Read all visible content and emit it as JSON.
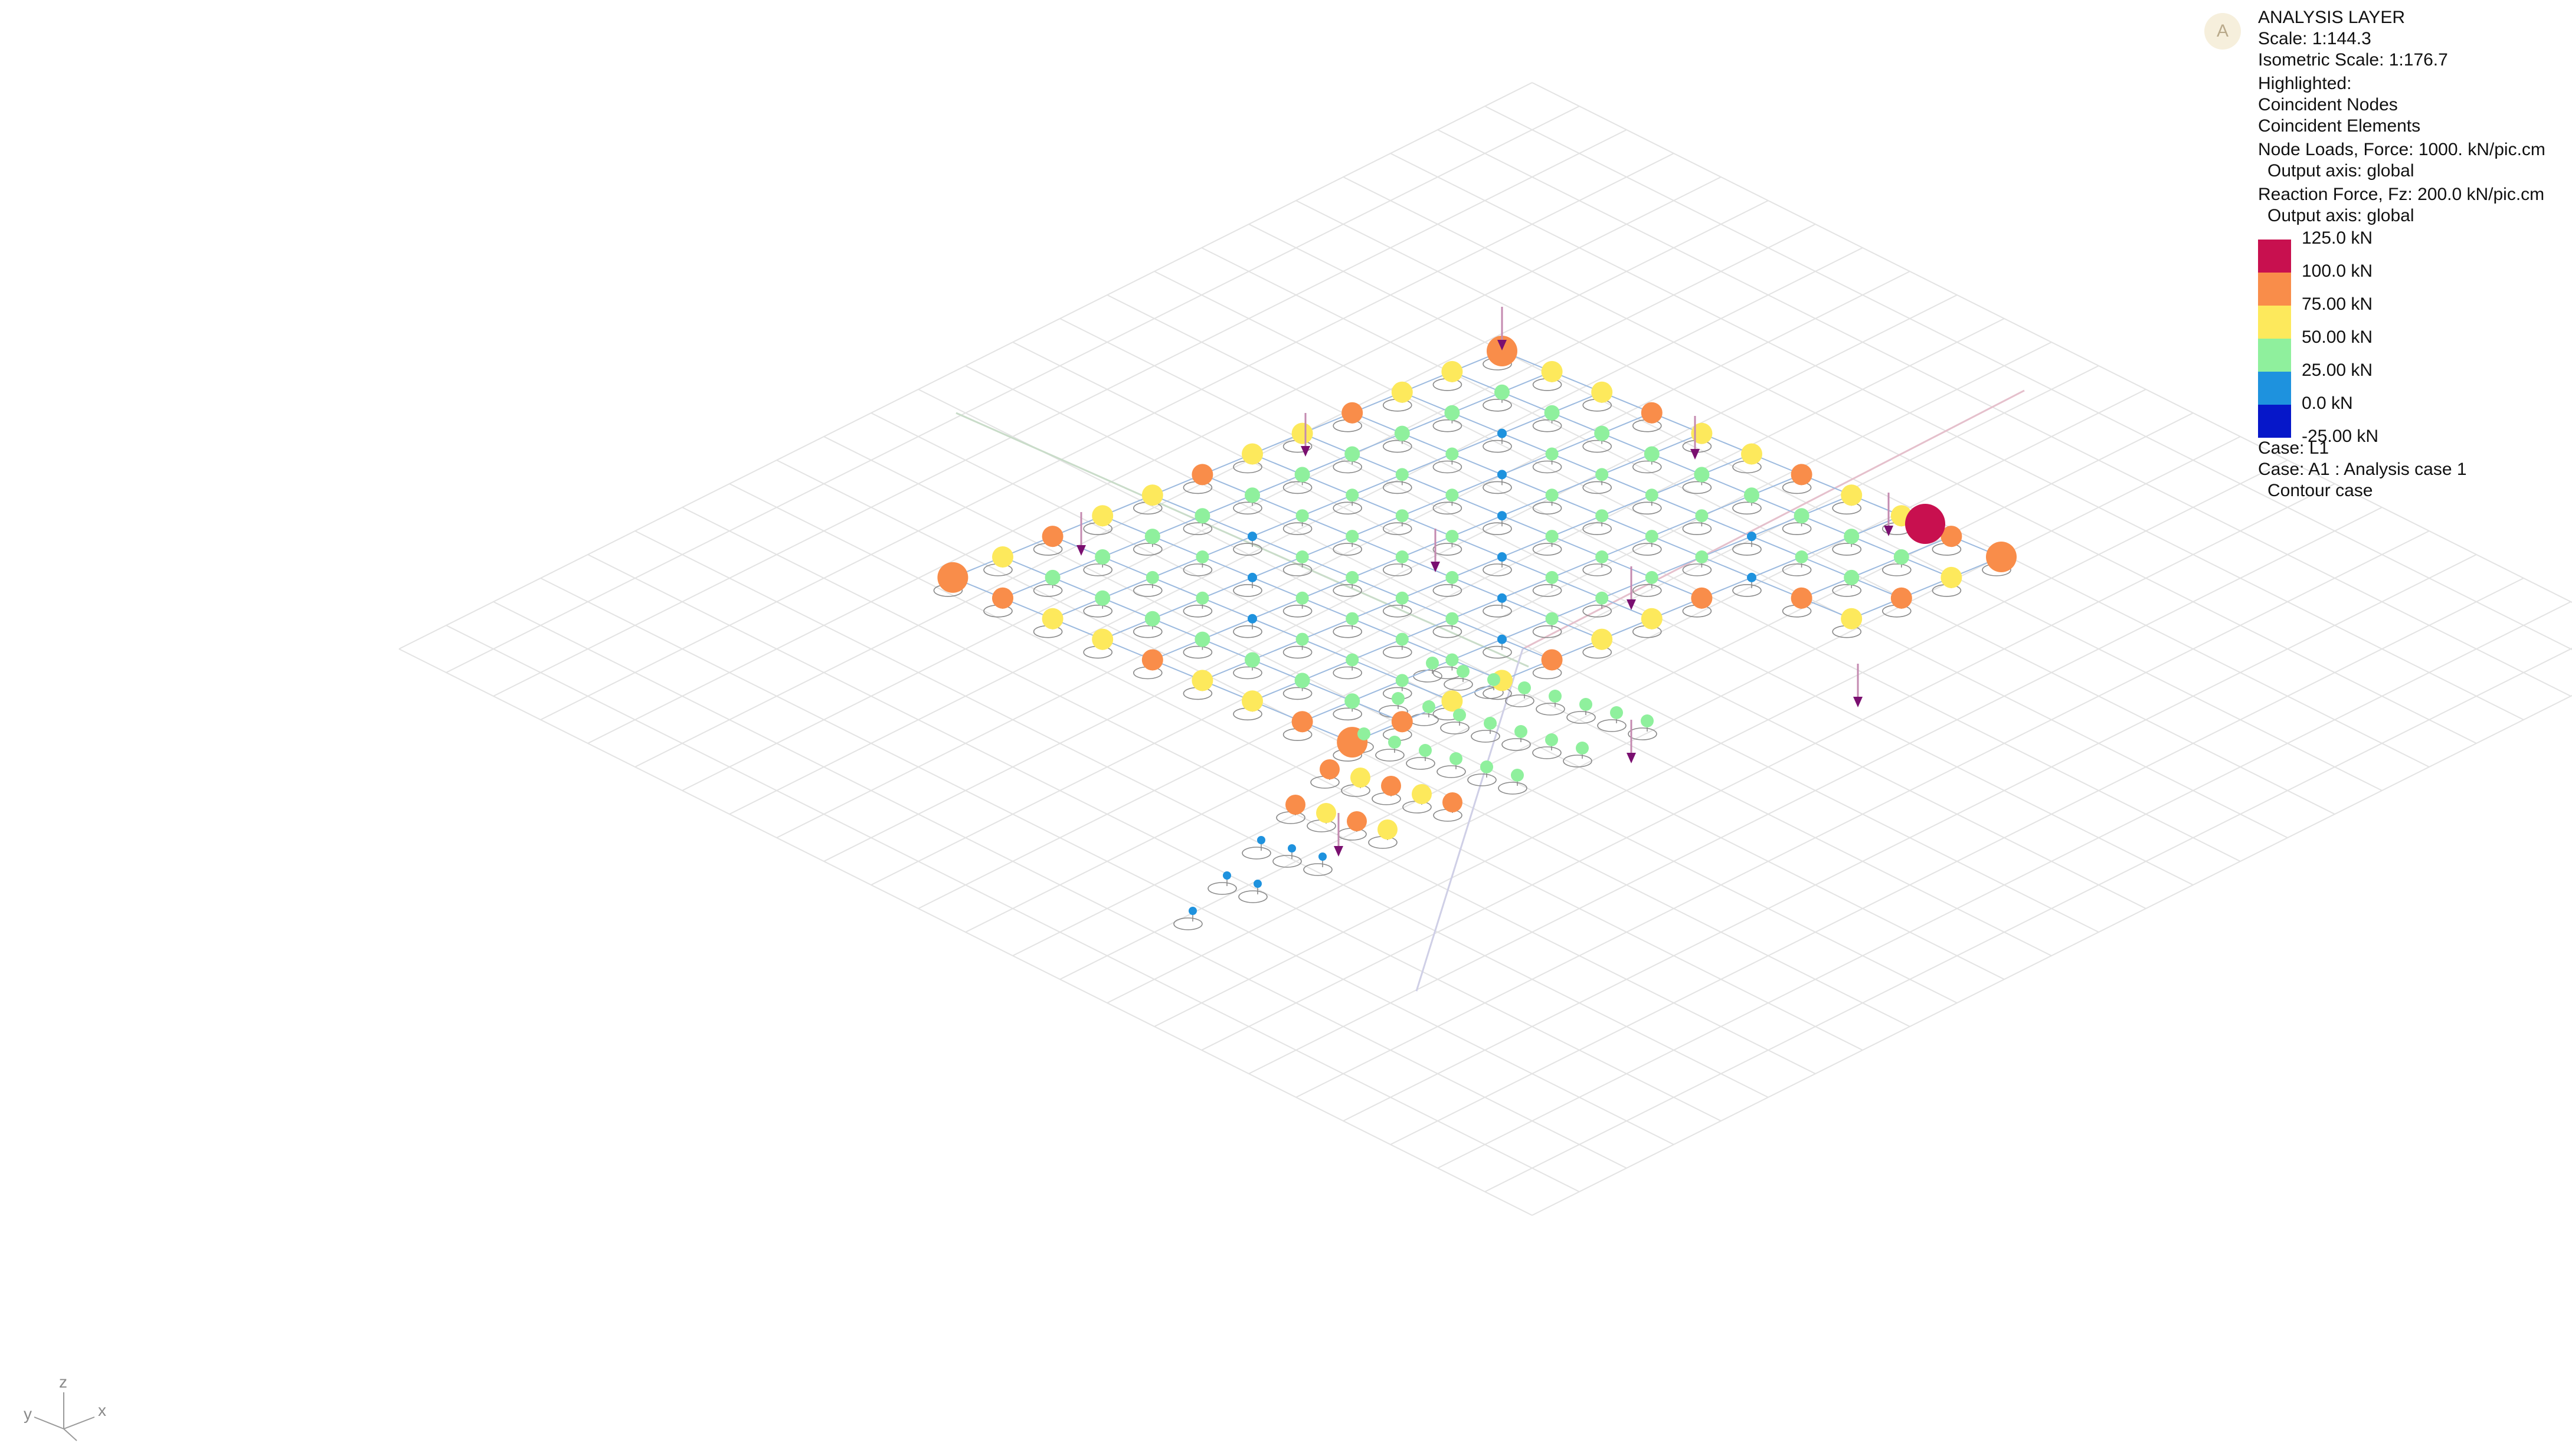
{
  "avatar": {
    "letter": "A"
  },
  "legend": {
    "title": "ANALYSIS LAYER",
    "scale": "Scale: 1:144.3",
    "iso_scale": "Isometric Scale: 1:176.7",
    "highlighted_title": "Highlighted:",
    "highlighted_items": [
      "Coincident Nodes",
      "Coincident Elements"
    ],
    "node_loads": "Node Loads, Force: 1000. kN/pic.cm",
    "node_loads_axis": "Output axis: global",
    "reaction": "Reaction Force, Fz: 200.0 kN/pic.cm",
    "reaction_axis": "Output axis: global",
    "ticks": [
      "125.0 kN",
      "100.0 kN",
      "75.00 kN",
      "50.00 kN",
      "25.00 kN",
      "0.0 kN",
      "-25.00 kN"
    ],
    "colors": [
      "#c8104f",
      "#f98d4a",
      "#fde95c",
      "#8ff09d",
      "#1e92de",
      "#0617c9"
    ],
    "case": "Case: L1",
    "case_analysis": "Case: A1 : Analysis case 1",
    "contour": "Contour case"
  },
  "axes": {
    "x": "x",
    "y": "y",
    "z": "z"
  },
  "icons": {
    "avatar": "user-avatar-icon",
    "triad": "axis-triad-icon",
    "support": "spring-support-icon",
    "load": "down-arrow-load-icon"
  }
}
